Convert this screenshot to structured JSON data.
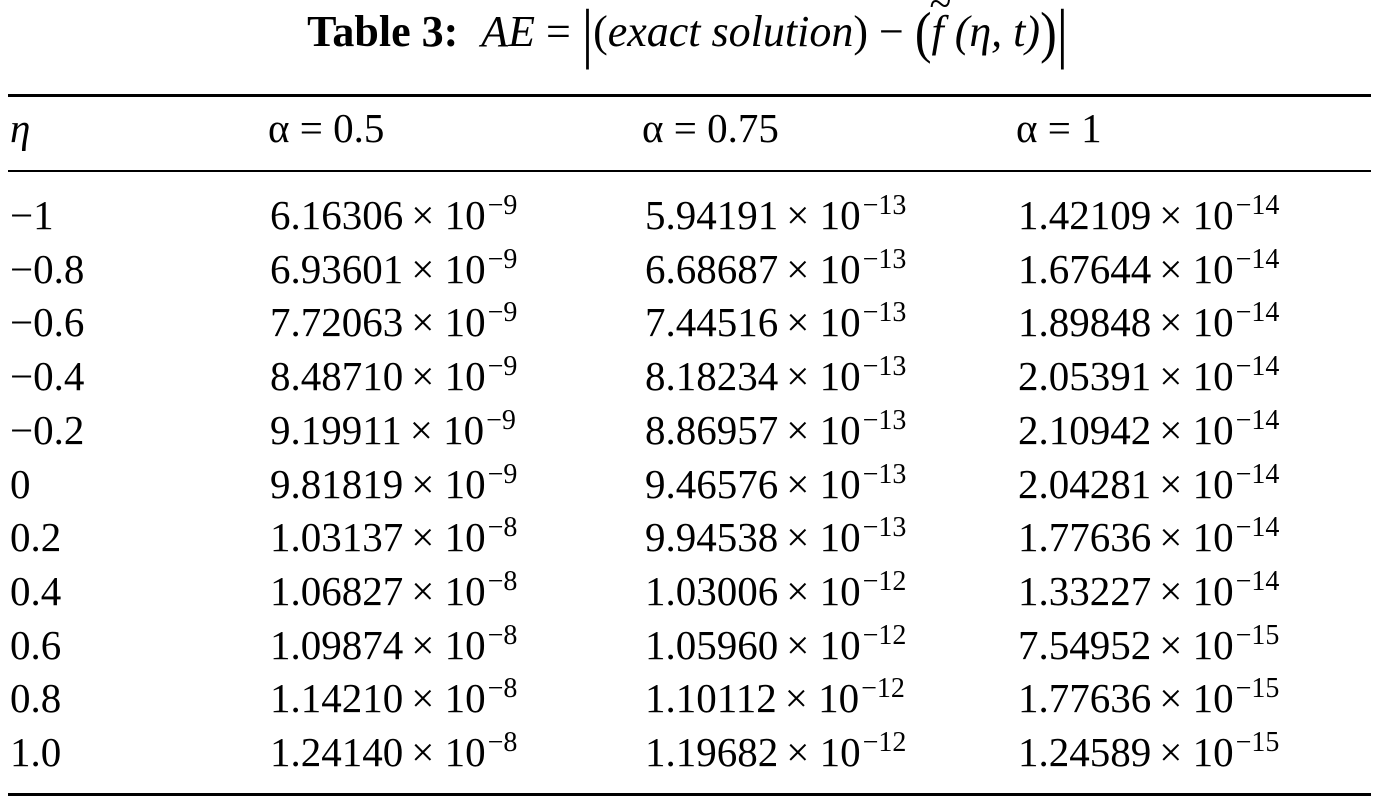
{
  "caption": {
    "label": "Table 3:",
    "lhs": "AE",
    "equals": "=",
    "bar": "|",
    "open_paren": "(",
    "close_paren": ")",
    "exact_solution": "exact solution",
    "minus": "−",
    "f": "f",
    "args": "(η, t)"
  },
  "table": {
    "headers": [
      "η",
      "α = 0.5",
      "α = 0.75",
      "α = 1"
    ],
    "times": "× 10",
    "rows": [
      {
        "eta": "−1",
        "v": [
          [
            "6.16306",
            "−9"
          ],
          [
            "5.94191",
            "−13"
          ],
          [
            "1.42109",
            "−14"
          ]
        ]
      },
      {
        "eta": "−0.8",
        "v": [
          [
            "6.93601",
            "−9"
          ],
          [
            "6.68687",
            "−13"
          ],
          [
            "1.67644",
            "−14"
          ]
        ]
      },
      {
        "eta": "−0.6",
        "v": [
          [
            "7.72063",
            "−9"
          ],
          [
            "7.44516",
            "−13"
          ],
          [
            "1.89848",
            "−14"
          ]
        ]
      },
      {
        "eta": "−0.4",
        "v": [
          [
            "8.48710",
            "−9"
          ],
          [
            "8.18234",
            "−13"
          ],
          [
            "2.05391",
            "−14"
          ]
        ]
      },
      {
        "eta": "−0.2",
        "v": [
          [
            "9.19911",
            "−9"
          ],
          [
            "8.86957",
            "−13"
          ],
          [
            "2.10942",
            "−14"
          ]
        ]
      },
      {
        "eta": "0",
        "v": [
          [
            "9.81819",
            "−9"
          ],
          [
            "9.46576",
            "−13"
          ],
          [
            "2.04281",
            "−14"
          ]
        ]
      },
      {
        "eta": "0.2",
        "v": [
          [
            "1.03137",
            "−8"
          ],
          [
            "9.94538",
            "−13"
          ],
          [
            "1.77636",
            "−14"
          ]
        ]
      },
      {
        "eta": "0.4",
        "v": [
          [
            "1.06827",
            "−8"
          ],
          [
            "1.03006",
            "−12"
          ],
          [
            "1.33227",
            "−14"
          ]
        ]
      },
      {
        "eta": "0.6",
        "v": [
          [
            "1.09874",
            "−8"
          ],
          [
            "1.05960",
            "−12"
          ],
          [
            "7.54952",
            "−15"
          ]
        ]
      },
      {
        "eta": "0.8",
        "v": [
          [
            "1.14210",
            "−8"
          ],
          [
            "1.10112",
            "−12"
          ],
          [
            "1.77636",
            "−15"
          ]
        ]
      },
      {
        "eta": "1.0",
        "v": [
          [
            "1.24140",
            "−8"
          ],
          [
            "1.19682",
            "−12"
          ],
          [
            "1.24589",
            "−15"
          ]
        ]
      }
    ]
  }
}
